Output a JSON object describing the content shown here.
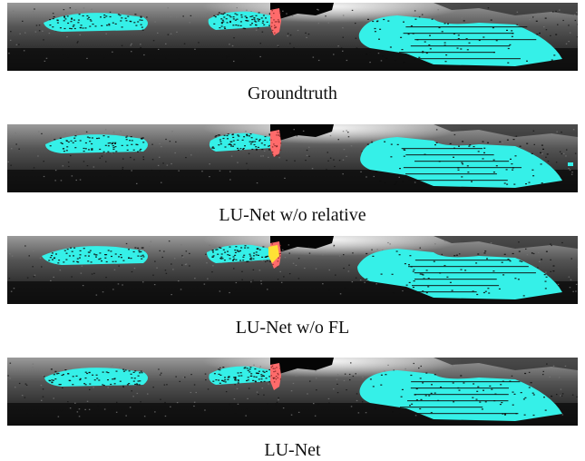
{
  "figure": {
    "panels": [
      {
        "caption": "Groundtruth",
        "pedestrian_color": "#ff6b6b",
        "secondary_color": ""
      },
      {
        "caption": "LU-Net w/o relative",
        "pedestrian_color": "#ff6b6b",
        "secondary_color": ""
      },
      {
        "caption": "LU-Net w/o FL",
        "pedestrian_color": "#ff6b6b",
        "secondary_color": "#ffe135"
      },
      {
        "caption": "LU-Net",
        "pedestrian_color": "#ff6b6b",
        "secondary_color": ""
      }
    ],
    "colors": {
      "car": "#35f0e8",
      "background_dark": "#0e0e0e",
      "background_light": "#f2f2f2"
    }
  }
}
